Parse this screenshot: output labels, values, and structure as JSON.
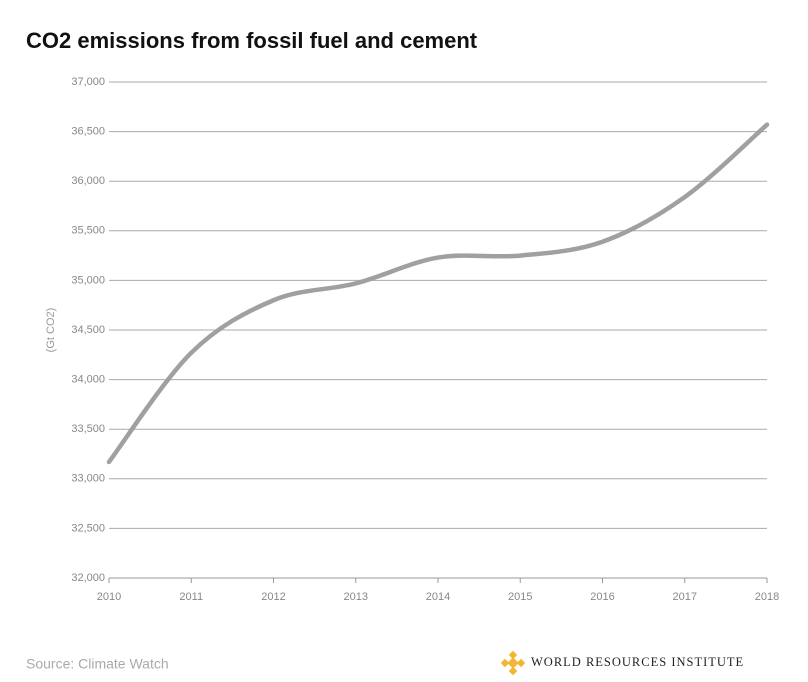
{
  "chart_data": {
    "type": "line",
    "title": "CO2 emissions from fossil fuel and cement",
    "y_label": "(Gt CO2)",
    "source": "Source: Climate Watch",
    "logo_text": "WORLD RESOURCES INSTITUTE",
    "x": [
      2010,
      2011,
      2012,
      2013,
      2014,
      2015,
      2016,
      2017,
      2018
    ],
    "series": [
      {
        "name": "CO2 emissions",
        "color": "#a0a0a0",
        "values": [
          33170,
          34270,
          34800,
          34970,
          35230,
          35250,
          35390,
          35840,
          36570
        ]
      }
    ],
    "xlim": [
      2010,
      2018
    ],
    "xticks": [
      2010,
      2011,
      2012,
      2013,
      2014,
      2015,
      2016,
      2017,
      2018
    ],
    "ylim": [
      32000,
      37000
    ],
    "yticks": [
      {
        "value": 32000,
        "label": "32,000"
      },
      {
        "value": 32500,
        "label": "32,500"
      },
      {
        "value": 33000,
        "label": "33,000"
      },
      {
        "value": 33500,
        "label": "33,500"
      },
      {
        "value": 34000,
        "label": "34,000"
      },
      {
        "value": 34500,
        "label": "34,500"
      },
      {
        "value": 35000,
        "label": "35,000"
      },
      {
        "value": 35500,
        "label": "35,500"
      },
      {
        "value": 36000,
        "label": "36,000"
      },
      {
        "value": 36500,
        "label": "36,500"
      },
      {
        "value": 37000,
        "label": "37,000"
      }
    ],
    "grid": true
  }
}
